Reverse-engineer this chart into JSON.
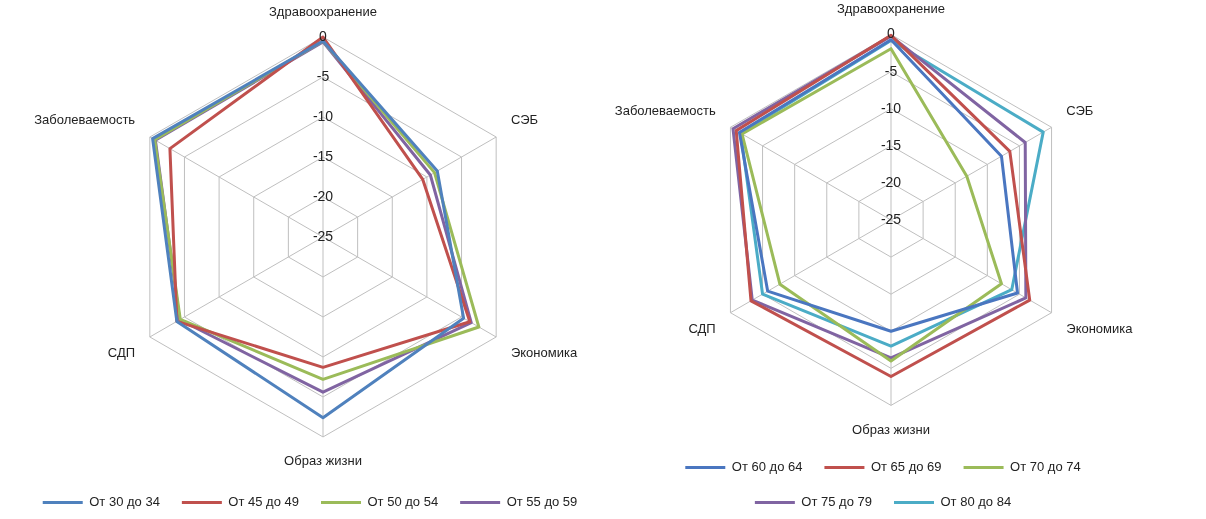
{
  "chart_data": [
    {
      "type": "radar",
      "categories": [
        "Здравоохранение",
        "СЭБ",
        "Экономика",
        "Образ жизни",
        "СДП",
        "Заболеваемость"
      ],
      "ylim": [
        -25,
        0
      ],
      "yticks": [
        0,
        -5,
        -10,
        -15,
        -20,
        -25
      ],
      "grid": true,
      "legend": "bottom",
      "marker": "none",
      "series": [
        {
          "name": "От 30 до 34",
          "color": "#4f81bd",
          "values": [
            -0.5,
            -8.5,
            -4.7,
            -2.4,
            -3.9,
            -0.4
          ]
        },
        {
          "name": "От 45 до 49",
          "color": "#c0504d",
          "values": [
            0,
            -10.6,
            -3.8,
            -8.7,
            -3.9,
            -2.9
          ]
        },
        {
          "name": "От 50 до 54",
          "color": "#9bbb59",
          "values": [
            -0.5,
            -8.9,
            -2.5,
            -7.2,
            -4.4,
            -0.7
          ]
        },
        {
          "name": "От 55 до 59",
          "color": "#8064a2",
          "values": [
            -0.6,
            -9.5,
            -3.6,
            -5.6,
            -4.3,
            -0.8
          ]
        }
      ]
    },
    {
      "type": "radar",
      "categories": [
        "Здравоохранение",
        "СЭБ",
        "Экономика",
        "Образ жизни",
        "СДП",
        "Заболеваемость"
      ],
      "ylim": [
        -25,
        0
      ],
      "yticks": [
        0,
        -5,
        -10,
        -15,
        -20,
        -25
      ],
      "grid": true,
      "legend": "bottom",
      "marker": "none",
      "series": [
        {
          "name": "От 60 до 64",
          "color": "#4a76c0",
          "values": [
            -0.7,
            -7.8,
            -5.3,
            -10.0,
            -5.8,
            -1.4
          ]
        },
        {
          "name": "От 65 до 69",
          "color": "#c0504d",
          "values": [
            -0.1,
            -6.5,
            -3.4,
            -3.9,
            -3.2,
            -0.9
          ]
        },
        {
          "name": "От 70 до 74",
          "color": "#9bbb59",
          "values": [
            -1.9,
            -13.2,
            -7.8,
            -6.0,
            -7.7,
            -1.8
          ]
        },
        {
          "name": "От 75 до 79",
          "color": "#8064a2",
          "values": [
            -0.2,
            -4.1,
            -4.0,
            -6.4,
            -3.4,
            -0.4
          ]
        },
        {
          "name": "От 80 до 84",
          "color": "#4bacc6",
          "values": [
            -0.8,
            -1.3,
            -6.2,
            -8.0,
            -5.0,
            -1.6
          ]
        }
      ]
    }
  ]
}
